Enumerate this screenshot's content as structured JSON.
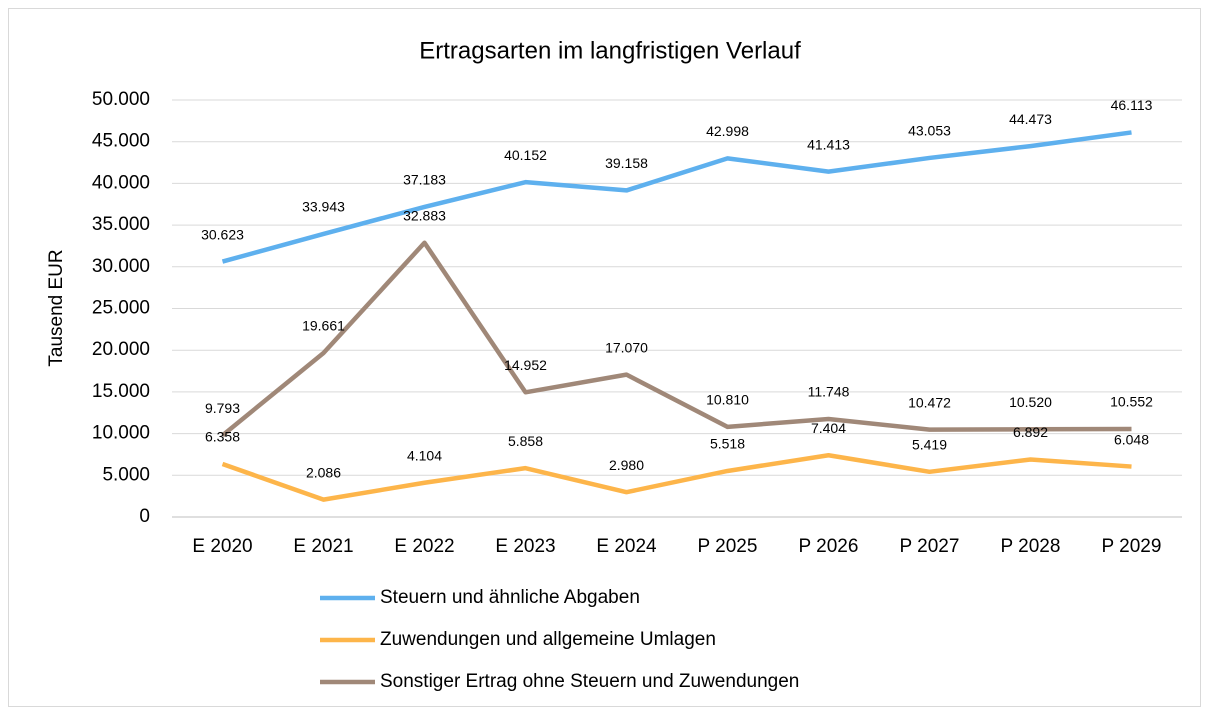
{
  "chart_data": {
    "type": "line",
    "title": "Ertragsarten im langfristigen Verlauf",
    "y_label": "Tausend EUR",
    "categories": [
      "E 2020",
      "E 2021",
      "E 2022",
      "E 2023",
      "E 2024",
      "P 2025",
      "P 2026",
      "P 2027",
      "P 2028",
      "P 2029"
    ],
    "series": [
      {
        "name": "Steuern und ähnliche Abgaben",
        "color": "#5eb0ee",
        "values": [
          30623,
          33943,
          37183,
          40152,
          39158,
          42998,
          41413,
          43053,
          44473,
          46113
        ],
        "value_labels": [
          "30.623",
          "33.943",
          "37.183",
          "40.152",
          "39.158",
          "42.998",
          "41.413",
          "43.053",
          "44.473",
          "46.113"
        ]
      },
      {
        "name": "Zuwendungen und allgemeine Umlagen",
        "color": "#fdb54a",
        "values": [
          6358,
          2086,
          4104,
          5858,
          2980,
          5518,
          7404,
          5419,
          6892,
          6048
        ],
        "value_labels": [
          "6.358",
          "2.086",
          "4.104",
          "5.858",
          "2.980",
          "5.518",
          "7.404",
          "5.419",
          "6.892",
          "6.048"
        ]
      },
      {
        "name": "Sonstiger Ertrag ohne Steuern und Zuwendungen",
        "color": "#a08878",
        "values": [
          9793,
          19661,
          32883,
          14952,
          17070,
          10810,
          11748,
          10472,
          10520,
          10552
        ],
        "value_labels": [
          "9.793",
          "19.661",
          "32.883",
          "14.952",
          "17.070",
          "10.810",
          "11.748",
          "10.472",
          "10.520",
          "10.552"
        ]
      }
    ],
    "ylim": [
      0,
      50000
    ],
    "yticks": [
      0,
      {
        "value": 5000,
        "label": "5.000"
      },
      {
        "value": 10000,
        "label": "10.000"
      },
      {
        "value": 15000,
        "label": "15.000"
      },
      {
        "value": 20000,
        "label": "20.000"
      },
      {
        "value": 25000,
        "label": "25.000"
      },
      {
        "value": 30000,
        "label": "30.000"
      },
      {
        "value": 35000,
        "label": "35.000"
      },
      {
        "value": 40000,
        "label": "40.000"
      },
      {
        "value": 45000,
        "label": "45.000"
      },
      {
        "value": 50000,
        "label": "50.000"
      }
    ],
    "grid": true,
    "legend": "bottom"
  }
}
